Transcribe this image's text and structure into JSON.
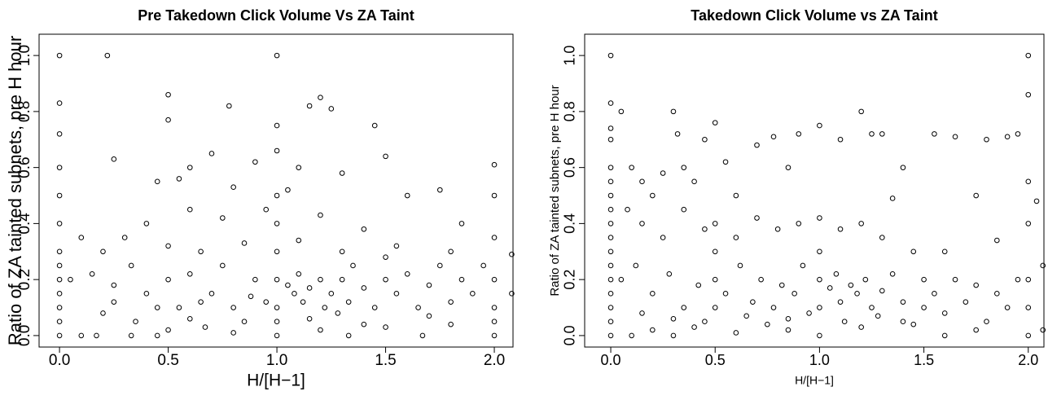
{
  "chart_data": [
    {
      "type": "scatter",
      "title": "Pre Takedown Click Volume Vs ZA Taint",
      "xlabel": "H/[H−1]",
      "ylabel": "Ratio of ZA tainted subnets, pre H hour",
      "xlim": [
        -0.094,
        2.086
      ],
      "ylim": [
        -0.041,
        1.076
      ],
      "xticks": [
        {
          "value": 0,
          "label": "0.0"
        },
        {
          "value": 0.5,
          "label": "0.5"
        },
        {
          "value": 1,
          "label": "1.0"
        },
        {
          "value": 1.5,
          "label": "1.5"
        },
        {
          "value": 2,
          "label": "2.0"
        }
      ],
      "yticks": [
        {
          "value": 0,
          "label": "0.0"
        },
        {
          "value": 0.2,
          "label": "0.2"
        },
        {
          "value": 0.4,
          "label": "0.4"
        },
        {
          "value": 0.6,
          "label": "0.6"
        },
        {
          "value": 0.8,
          "label": "0.8"
        },
        {
          "value": 1,
          "label": "1.0"
        }
      ],
      "color": "#000000",
      "x": [
        0,
        0,
        0,
        0,
        0,
        0,
        0,
        0,
        0,
        0,
        0,
        0,
        0,
        0.22,
        1.0,
        0.5,
        0.5,
        0.78,
        1.2,
        1.15,
        1.25,
        1.0,
        1.45,
        0.25,
        0.6,
        0.7,
        0.9,
        1.0,
        1.1,
        1.5,
        1.3,
        0.45,
        0.55,
        0.8,
        1.05,
        1.6,
        1.75,
        1.85,
        0.4,
        0.6,
        0.75,
        0.95,
        1.2,
        1.4,
        0.3,
        0.1,
        0.2,
        0.5,
        0.65,
        0.85,
        1.1,
        1.3,
        1.55,
        1.8,
        2.0,
        2.08,
        2.0,
        2.0,
        0.05,
        0.15,
        0.25,
        0.33,
        0.4,
        0.5,
        0.55,
        0.6,
        0.7,
        0.75,
        0.8,
        0.9,
        0.95,
        1.0,
        1.0,
        1.0,
        1.0,
        1.0,
        1.0,
        1.05,
        1.08,
        1.1,
        1.12,
        1.15,
        1.2,
        1.22,
        1.25,
        1.3,
        1.33,
        1.35,
        1.4,
        1.45,
        1.5,
        1.5,
        1.55,
        1.6,
        1.65,
        1.7,
        1.75,
        1.8,
        1.85,
        1.9,
        1.95,
        2.0,
        2.0,
        2.0,
        2.0,
        2.08,
        0.1,
        0.17,
        0.33,
        0.45,
        0.5,
        0.67,
        0.8,
        1.0,
        1.2,
        1.33,
        1.5,
        1.67,
        1.8,
        0.2,
        0.35,
        0.6,
        0.85,
        1.15,
        1.4,
        1.7,
        0.25,
        0.45,
        0.65,
        0.88,
        1.28
      ],
      "y": [
        0,
        0.05,
        0.1,
        0.15,
        0.2,
        0.25,
        0.3,
        0.4,
        0.5,
        0.6,
        0.72,
        0.83,
        1.0,
        1.0,
        1.0,
        0.86,
        0.77,
        0.82,
        0.85,
        0.82,
        0.81,
        0.75,
        0.75,
        0.63,
        0.6,
        0.65,
        0.62,
        0.66,
        0.6,
        0.64,
        0.58,
        0.55,
        0.56,
        0.53,
        0.52,
        0.5,
        0.52,
        0.4,
        0.4,
        0.45,
        0.42,
        0.45,
        0.43,
        0.38,
        0.35,
        0.35,
        0.3,
        0.32,
        0.3,
        0.33,
        0.34,
        0.3,
        0.32,
        0.3,
        0.35,
        0.29,
        0.61,
        0.5,
        0.2,
        0.22,
        0.18,
        0.25,
        0.15,
        0.2,
        0.1,
        0.22,
        0.15,
        0.25,
        0.1,
        0.2,
        0.12,
        0.2,
        0.1,
        0.3,
        0.4,
        0.5,
        0.05,
        0.18,
        0.15,
        0.22,
        0.12,
        0.17,
        0.2,
        0.1,
        0.15,
        0.2,
        0.12,
        0.25,
        0.17,
        0.1,
        0.2,
        0.28,
        0.15,
        0.22,
        0.1,
        0.18,
        0.25,
        0.12,
        0.2,
        0.15,
        0.25,
        0.2,
        0.1,
        0,
        0.05,
        0.15,
        0,
        0,
        0,
        0,
        0.02,
        0.03,
        0.01,
        0,
        0.02,
        0,
        0.03,
        0,
        0.04,
        0.08,
        0.05,
        0.06,
        0.05,
        0.06,
        0.04,
        0.07,
        0.12,
        0.1,
        0.12,
        0.14,
        0.08
      ]
    },
    {
      "type": "scatter",
      "title": "Takedown Click Volume vs ZA Taint",
      "xlabel": "H/[H−1]",
      "ylabel": "Ratio of ZA tainted subnets, pre H hour",
      "xlim": [
        -0.125,
        2.075
      ],
      "ylim": [
        -0.041,
        1.076
      ],
      "xticks": [
        {
          "value": 0,
          "label": "0.0"
        },
        {
          "value": 0.5,
          "label": "0.5"
        },
        {
          "value": 1,
          "label": "1.0"
        },
        {
          "value": 1.5,
          "label": "1.5"
        },
        {
          "value": 2,
          "label": "2.0"
        }
      ],
      "yticks": [
        {
          "value": 0,
          "label": "0.0"
        },
        {
          "value": 0.2,
          "label": "0.2"
        },
        {
          "value": 0.4,
          "label": "0.4"
        },
        {
          "value": 0.6,
          "label": "0.6"
        },
        {
          "value": 0.8,
          "label": "0.8"
        },
        {
          "value": 1,
          "label": "1.0"
        }
      ],
      "color": "#000000",
      "x": [
        0,
        0,
        0,
        0,
        0,
        0,
        0,
        0,
        0,
        0,
        0,
        0,
        0,
        0,
        0,
        0,
        0,
        0.05,
        0.1,
        0.15,
        0.2,
        0.25,
        0.3,
        0.32,
        0.35,
        0.4,
        0.45,
        0.5,
        0.55,
        0.6,
        0.7,
        0.78,
        0.85,
        0.9,
        1.0,
        1.1,
        1.2,
        1.25,
        1.3,
        1.4,
        1.55,
        1.65,
        1.8,
        1.9,
        1.95,
        2.0,
        2.0,
        2.0,
        1.75,
        2.04,
        1.35,
        0.08,
        0.15,
        0.25,
        0.35,
        0.45,
        0.5,
        0.6,
        0.7,
        0.8,
        0.9,
        1.0,
        1.1,
        1.2,
        1.3,
        1.45,
        1.6,
        1.85,
        2.0,
        0.05,
        0.12,
        0.2,
        0.28,
        0.35,
        0.42,
        0.5,
        0.5,
        0.5,
        0.55,
        0.62,
        0.68,
        0.72,
        0.78,
        0.82,
        0.88,
        0.92,
        0.95,
        1.0,
        1.0,
        1.0,
        1.0,
        1.05,
        1.08,
        1.1,
        1.15,
        1.18,
        1.22,
        1.25,
        1.3,
        1.35,
        1.4,
        1.5,
        1.5,
        1.55,
        1.6,
        1.65,
        1.7,
        1.75,
        1.8,
        1.85,
        1.9,
        1.95,
        2.0,
        2.0,
        2.0,
        2.07,
        2.07,
        0.1,
        0.2,
        0.3,
        0.4,
        0.6,
        0.75,
        0.85,
        1.2,
        1.4,
        1.6,
        1.75,
        0.15,
        0.3,
        0.45,
        0.65,
        0.85,
        1.12,
        1.28,
        1.45
      ],
      "y": [
        1.0,
        0.83,
        0.74,
        0.7,
        0.6,
        0.55,
        0.5,
        0.45,
        0.4,
        0.35,
        0.3,
        0.25,
        0.2,
        0.15,
        0.1,
        0.05,
        0,
        0.8,
        0.6,
        0.55,
        0.5,
        0.58,
        0.8,
        0.72,
        0.6,
        0.55,
        0.7,
        0.76,
        0.62,
        0.5,
        0.68,
        0.71,
        0.6,
        0.72,
        0.75,
        0.7,
        0.8,
        0.72,
        0.72,
        0.6,
        0.72,
        0.71,
        0.7,
        0.71,
        0.72,
        1.0,
        0.86,
        0.55,
        0.5,
        0.48,
        0.49,
        0.45,
        0.4,
        0.35,
        0.45,
        0.38,
        0.4,
        0.35,
        0.42,
        0.38,
        0.4,
        0.42,
        0.38,
        0.4,
        0.35,
        0.3,
        0.3,
        0.34,
        0.4,
        0.2,
        0.25,
        0.15,
        0.22,
        0.1,
        0.18,
        0.2,
        0.1,
        0.3,
        0.15,
        0.25,
        0.12,
        0.2,
        0.1,
        0.18,
        0.15,
        0.25,
        0.08,
        0.2,
        0.1,
        0.3,
        0,
        0.17,
        0.22,
        0.12,
        0.18,
        0.15,
        0.2,
        0.1,
        0.16,
        0.22,
        0.12,
        0.2,
        0.1,
        0.15,
        0.08,
        0.2,
        0.12,
        0.18,
        0.05,
        0.15,
        0.1,
        0.2,
        0.2,
        0.1,
        0,
        0.02,
        0.25,
        0,
        0.02,
        0,
        0.03,
        0.01,
        0.04,
        0.02,
        0.03,
        0.05,
        0,
        0.02,
        0.08,
        0.06,
        0.05,
        0.07,
        0.06,
        0.05,
        0.07,
        0.04
      ]
    }
  ]
}
